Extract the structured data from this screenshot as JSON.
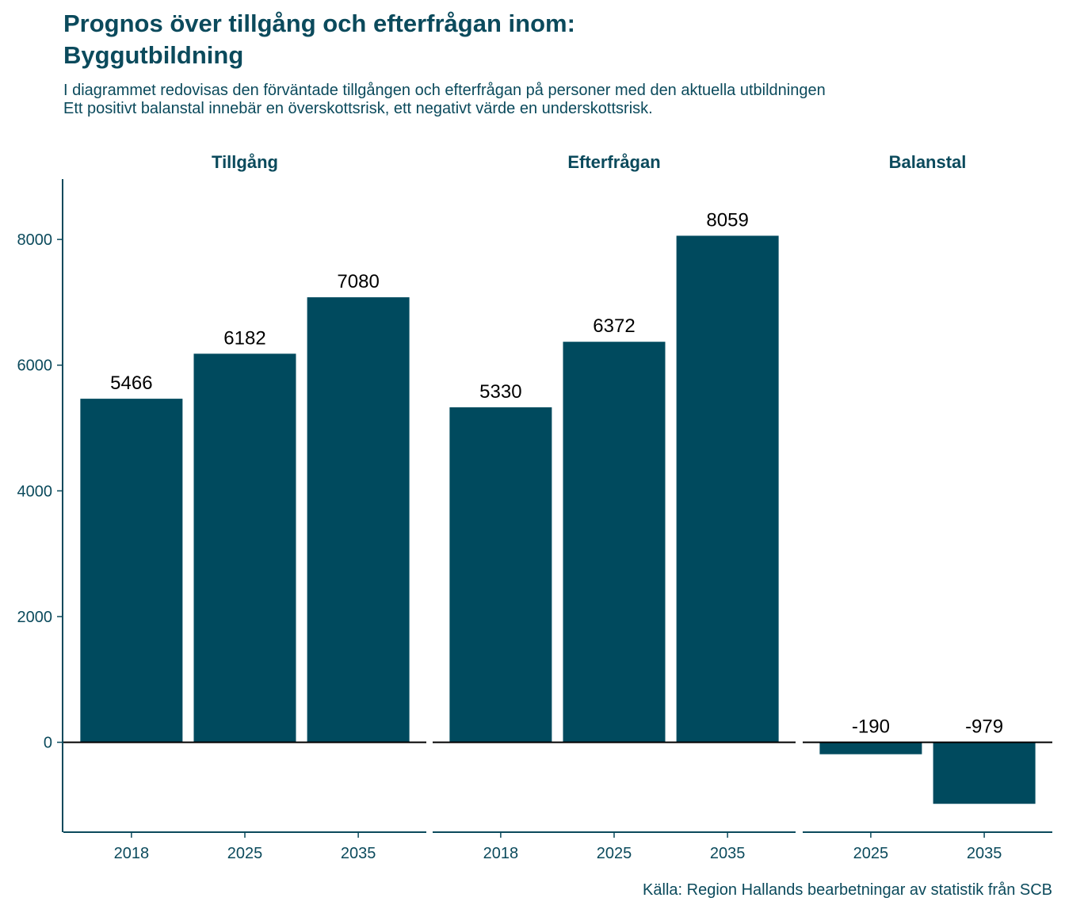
{
  "title_lines": [
    "Prognos över tillgång och efterfrågan inom:",
    "Byggutbildning"
  ],
  "subtitle_lines": [
    "I diagrammet redovisas den förväntade tillgången och efterfrågan på personer med den aktuella utbildningen",
    "Ett positivt balanstal innebär en överskottsrisk, ett negativt värde en underskottsrisk."
  ],
  "caption": "Källa: Region Hallands bearbetningar av statistik från SCB",
  "colors": {
    "bar": "#004a5e",
    "text": "#0b4a5c",
    "axis": "#0b4a5c",
    "zero_line": "#000000"
  },
  "chart_data": {
    "type": "bar",
    "y_ticks": [
      0,
      2000,
      4000,
      6000,
      8000
    ],
    "ylim": [
      -1430,
      8960
    ],
    "grid": false,
    "facets": [
      {
        "name": "Tillgång",
        "categories": [
          "2018",
          "2025",
          "2035"
        ],
        "values": [
          5466,
          6182,
          7080
        ]
      },
      {
        "name": "Efterfrågan",
        "categories": [
          "2018",
          "2025",
          "2035"
        ],
        "values": [
          5330,
          6372,
          8059
        ]
      },
      {
        "name": "Balanstal",
        "categories": [
          "2025",
          "2035"
        ],
        "values": [
          -190,
          -979
        ]
      }
    ]
  }
}
